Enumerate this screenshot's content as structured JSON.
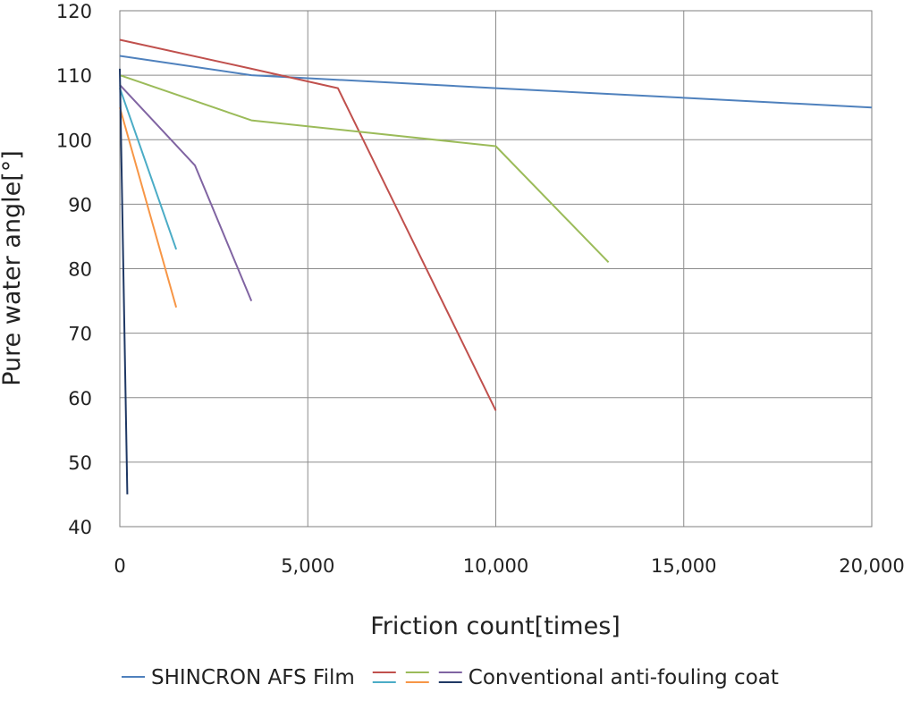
{
  "chart_data": {
    "type": "line",
    "title": "",
    "xlabel": "Friction count[times]",
    "ylabel": "Pure water angle[°]",
    "xlim": [
      0,
      20000
    ],
    "ylim": [
      40,
      120
    ],
    "xticks": [
      0,
      5000,
      10000,
      15000,
      20000
    ],
    "xtick_labels": [
      "0",
      "5,000",
      "10,000",
      "15,000",
      "20,000"
    ],
    "yticks": [
      40,
      50,
      60,
      70,
      80,
      90,
      100,
      110,
      120
    ],
    "ytick_labels": [
      "40",
      "50",
      "60",
      "70",
      "80",
      "90",
      "100",
      "110",
      "120"
    ],
    "grid": true,
    "legend_position": "bottom",
    "series": [
      {
        "color": "#4f81bd",
        "points": [
          [
            0,
            113
          ],
          [
            3500,
            110
          ],
          [
            10000,
            108
          ],
          [
            20000,
            105
          ]
        ]
      },
      {
        "color": "#c0504d",
        "points": [
          [
            0,
            115.5
          ],
          [
            3500,
            111
          ],
          [
            5800,
            108
          ],
          [
            10000,
            58
          ]
        ]
      },
      {
        "color": "#9bbb59",
        "points": [
          [
            0,
            110
          ],
          [
            3500,
            103
          ],
          [
            10000,
            99
          ],
          [
            13000,
            81
          ]
        ]
      },
      {
        "color": "#8064a2",
        "points": [
          [
            0,
            108.5
          ],
          [
            2000,
            96
          ],
          [
            3500,
            75
          ]
        ]
      },
      {
        "color": "#4bacc6",
        "points": [
          [
            0,
            108
          ],
          [
            1500,
            83
          ]
        ]
      },
      {
        "color": "#f79646",
        "points": [
          [
            0,
            105
          ],
          [
            1500,
            74
          ]
        ]
      },
      {
        "color": "#1f3864",
        "points": [
          [
            0,
            111
          ],
          [
            200,
            45
          ]
        ]
      }
    ],
    "legend": [
      {
        "label": "SHINCRON AFS Film",
        "colors": [
          "#4f81bd"
        ]
      },
      {
        "label": "Conventional anti-fouling coat",
        "colors": [
          "#c0504d",
          "#9bbb59",
          "#8064a2",
          "#4bacc6",
          "#f79646",
          "#1f3864"
        ]
      }
    ]
  }
}
